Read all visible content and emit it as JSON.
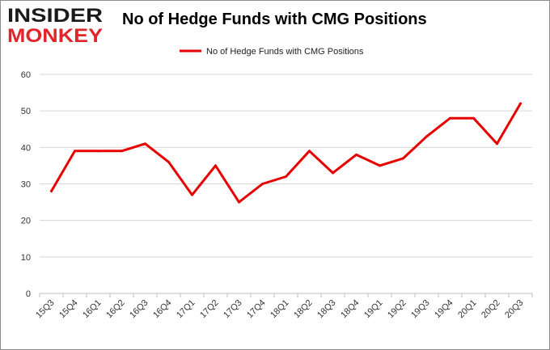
{
  "header": {
    "logo_top": "INSIDER",
    "logo_bottom": "MONKEY",
    "title": "No of Hedge Funds with CMG Positions"
  },
  "colors": {
    "line": "#e60000",
    "logo_top": "#1a1a1a",
    "logo_bottom": "#e0252b",
    "grid": "#d6d6d6",
    "axis_text": "#333333"
  },
  "chart_data": {
    "type": "line",
    "title": "No of Hedge Funds with CMG Positions",
    "xlabel": "",
    "ylabel": "",
    "ylim": [
      0,
      60
    ],
    "yticks": [
      0,
      10,
      20,
      30,
      40,
      50,
      60
    ],
    "grid": "horizontal",
    "legend": "top-center",
    "categories": [
      "15Q3",
      "15Q4",
      "16Q1",
      "16Q2",
      "16Q3",
      "16Q4",
      "17Q1",
      "17Q2",
      "17Q3",
      "17Q4",
      "18Q1",
      "18Q2",
      "18Q3",
      "18Q4",
      "19Q1",
      "19Q2",
      "19Q3",
      "19Q4",
      "20Q1",
      "20Q2",
      "20Q3"
    ],
    "series": [
      {
        "name": "No of Hedge Funds with CMG Positions",
        "values": [
          28,
          39,
          39,
          39,
          41,
          36,
          27,
          35,
          25,
          30,
          32,
          39,
          33,
          38,
          35,
          37,
          43,
          48,
          48,
          41,
          52
        ]
      }
    ]
  }
}
